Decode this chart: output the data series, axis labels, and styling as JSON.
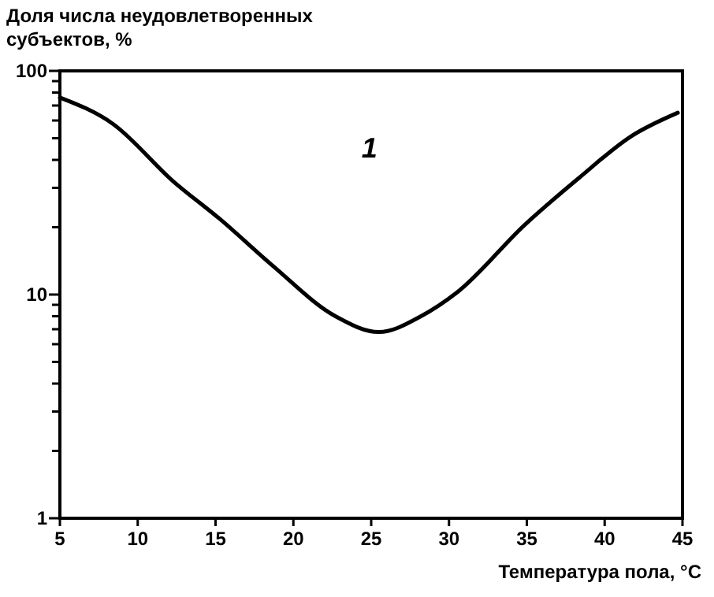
{
  "chart_data": {
    "type": "line",
    "ylabel": "Доля числа неудовлетворенных\nсубъектов, %",
    "xlabel": "Температура пола, °С",
    "x": [
      5,
      8.4,
      12.3,
      15.3,
      18.7,
      22.7,
      25.5,
      28.2,
      30.5,
      34.9,
      38.3,
      41.7,
      44.7
    ],
    "series": [
      {
        "name": "1",
        "color": "#000000",
        "values": [
          76,
          58,
          32,
          21.7,
          13.4,
          8,
          6.8,
          8,
          10.2,
          20.6,
          33,
          51,
          65
        ]
      }
    ],
    "log": true,
    "xlim": [
      5,
      45
    ],
    "xticks": [
      5,
      10,
      15,
      20,
      25,
      30,
      35,
      40,
      45
    ],
    "ylim": [
      1,
      100
    ],
    "yticks": [
      1,
      {
        "value": 2,
        "label": null
      },
      {
        "value": 3,
        "label": null
      },
      {
        "value": 4,
        "label": null
      },
      {
        "value": 5,
        "label": null
      },
      {
        "value": 6,
        "label": null
      },
      {
        "value": 7,
        "label": null
      },
      {
        "value": 8,
        "label": null
      },
      {
        "value": 9,
        "label": null
      },
      10,
      {
        "value": 20,
        "label": null
      },
      {
        "value": 30,
        "label": null
      },
      {
        "value": 40,
        "label": null
      },
      {
        "value": 50,
        "label": null
      },
      {
        "value": 60,
        "label": null
      },
      {
        "value": 70,
        "label": null
      },
      {
        "value": 80,
        "label": null
      },
      {
        "value": 90,
        "label": null
      },
      100
    ],
    "grid": false,
    "marker": "none",
    "line_style": "solid"
  }
}
